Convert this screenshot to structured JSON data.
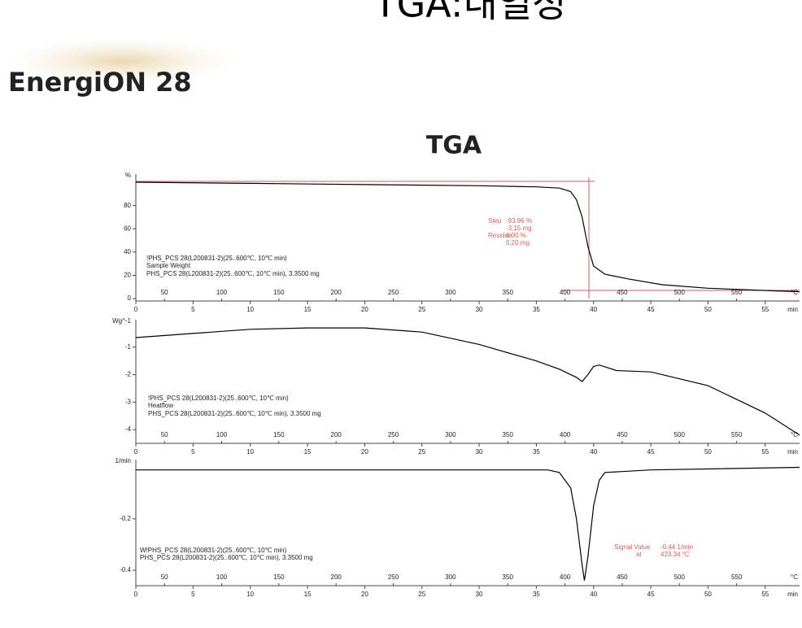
{
  "slide": {
    "title": "TGA:내열성",
    "brand": "EnergiON 28",
    "heading": "TGA"
  },
  "chart_data": [
    {
      "type": "line",
      "ylabel": "%",
      "xlabel": "min",
      "x2label": "°C",
      "color": "#000000",
      "x": [
        0,
        10,
        20,
        30,
        35,
        37,
        38,
        38.5,
        39,
        39.5,
        40,
        41,
        43,
        46,
        50,
        55,
        58
      ],
      "values": [
        100,
        99,
        98,
        97,
        96,
        95,
        92,
        85,
        70,
        45,
        28,
        21,
        17,
        12,
        9,
        7,
        6
      ],
      "xlim": [
        0,
        58
      ],
      "xticks": [
        0,
        5,
        10,
        15,
        20,
        25,
        30,
        35,
        40,
        45,
        50,
        55
      ],
      "x2lim": [
        25,
        605
      ],
      "x2ticks": [
        50,
        100,
        150,
        200,
        250,
        300,
        350,
        400,
        450,
        500,
        550
      ],
      "ylim": [
        -2,
        107
      ],
      "yticks": [
        0,
        20,
        40,
        60,
        80
      ],
      "legend": [
        "!PHS_PCS 28(L200831-2)(25..600℃, 10℃ min)",
        "Sample Weight",
        "PHS_PCS 28(L200831-2)(25..600℃, 10℃ min), 3.3500 mg"
      ],
      "annotations": [
        "Step",
        "-93.96 %",
        "-3.15 mg",
        "Residue",
        "6.00 %",
        "0.20 mg"
      ],
      "annotation_color": "#e05a5a"
    },
    {
      "type": "line",
      "ylabel": "Wg^-1",
      "xlabel": "min",
      "x2label": "°C",
      "color": "#000000",
      "x": [
        0,
        5,
        10,
        15,
        20,
        25,
        30,
        35,
        37,
        38.5,
        39,
        39.5,
        40,
        40.5,
        42,
        45,
        48,
        50,
        52,
        55,
        58
      ],
      "values": [
        -0.65,
        -0.5,
        -0.35,
        -0.3,
        -0.3,
        -0.45,
        -0.9,
        -1.5,
        -1.8,
        -2.1,
        -2.25,
        -2,
        -1.7,
        -1.65,
        -1.85,
        -1.9,
        -2.2,
        -2.4,
        -2.8,
        -3.4,
        -4.2
      ],
      "xlim": [
        0,
        58
      ],
      "xticks": [
        0,
        5,
        10,
        15,
        20,
        25,
        30,
        35,
        40,
        45,
        50,
        55
      ],
      "x2lim": [
        25,
        605
      ],
      "x2ticks": [
        50,
        100,
        150,
        200,
        250,
        300,
        350,
        400,
        450,
        500,
        550
      ],
      "ylim": [
        -4.5,
        0
      ],
      "yticks": [
        -1,
        -2,
        -3,
        -4
      ],
      "legend": [
        "!PHS_PCS 28(L200831-2)(25..600℃, 10℃ min)",
        "Heatflow",
        "PHS_PCS 28(L200831-2)(25..600℃, 10℃ min), 3.3500 mg"
      ],
      "annotations": [],
      "annotation_color": "#e05a5a"
    },
    {
      "type": "line",
      "ylabel": "1/min",
      "xlabel": "min",
      "x2label": "°C",
      "color": "#000000",
      "x": [
        0,
        30,
        36,
        37,
        38,
        38.5,
        39,
        39.2,
        39.5,
        40,
        40.5,
        41,
        45,
        58
      ],
      "values": [
        -0.01,
        -0.01,
        -0.01,
        -0.02,
        -0.08,
        -0.2,
        -0.38,
        -0.44,
        -0.35,
        -0.15,
        -0.05,
        -0.02,
        -0.01,
        0
      ],
      "xlim": [
        0,
        58
      ],
      "xticks": [
        0,
        5,
        10,
        15,
        20,
        25,
        30,
        35,
        40,
        45,
        50,
        55
      ],
      "x2lim": [
        25,
        605
      ],
      "x2ticks": [
        50,
        100,
        150,
        200,
        250,
        300,
        350,
        400,
        450,
        500,
        550
      ],
      "ylim": [
        -0.46,
        0.03
      ],
      "yticks": [
        -0.2,
        -0.4
      ],
      "legend": [
        "W!PHS_PCS 28(L200831-2)(25..600℃, 10℃ min)",
        "PHS_PCS 28(L200831-2)(25..600℃, 10℃ min), 3.3500 mg"
      ],
      "annotations": [
        "Signal Value",
        "-0.44 1/min",
        "at",
        "423.34 °C"
      ],
      "annotation_color": "#e05a5a"
    }
  ]
}
